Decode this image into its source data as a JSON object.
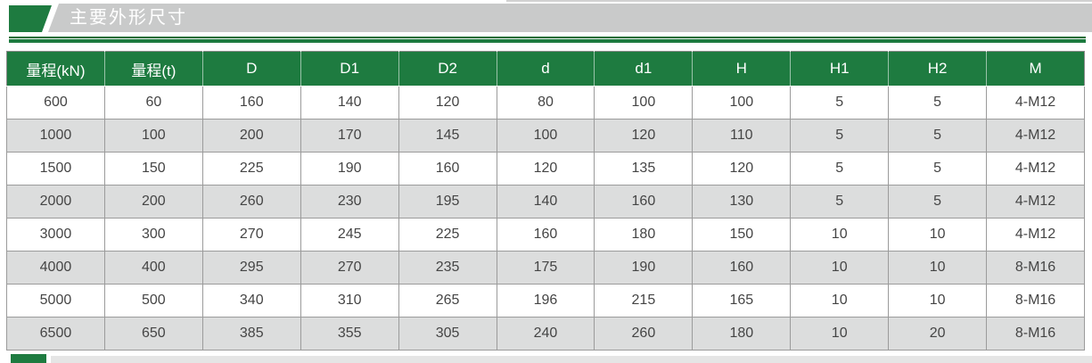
{
  "section": {
    "title": "主要外形尺寸"
  },
  "table": {
    "columns": [
      "量程(kN)",
      "量程(t)",
      "D",
      "D1",
      "D2",
      "d",
      "d1",
      "H",
      "H1",
      "H2",
      "M"
    ],
    "rows": [
      [
        "600",
        "60",
        "160",
        "140",
        "120",
        "80",
        "100",
        "100",
        "5",
        "5",
        "4-M12"
      ],
      [
        "1000",
        "100",
        "200",
        "170",
        "145",
        "100",
        "120",
        "110",
        "5",
        "5",
        "4-M12"
      ],
      [
        "1500",
        "150",
        "225",
        "190",
        "160",
        "120",
        "135",
        "120",
        "5",
        "5",
        "4-M12"
      ],
      [
        "2000",
        "200",
        "260",
        "230",
        "195",
        "140",
        "160",
        "130",
        "5",
        "5",
        "4-M12"
      ],
      [
        "3000",
        "300",
        "270",
        "245",
        "225",
        "160",
        "180",
        "150",
        "10",
        "10",
        "4-M12"
      ],
      [
        "4000",
        "400",
        "295",
        "270",
        "235",
        "175",
        "190",
        "160",
        "10",
        "10",
        "8-M16"
      ],
      [
        "5000",
        "500",
        "340",
        "310",
        "265",
        "196",
        "215",
        "165",
        "10",
        "10",
        "8-M16"
      ],
      [
        "6500",
        "650",
        "385",
        "355",
        "305",
        "240",
        "260",
        "180",
        "10",
        "20",
        "8-M16"
      ]
    ]
  },
  "colors": {
    "accent_green": "#1e7b40",
    "banner_gray": "#c9caca",
    "row_alt_gray": "#dcdddd",
    "cell_text": "#454545"
  }
}
